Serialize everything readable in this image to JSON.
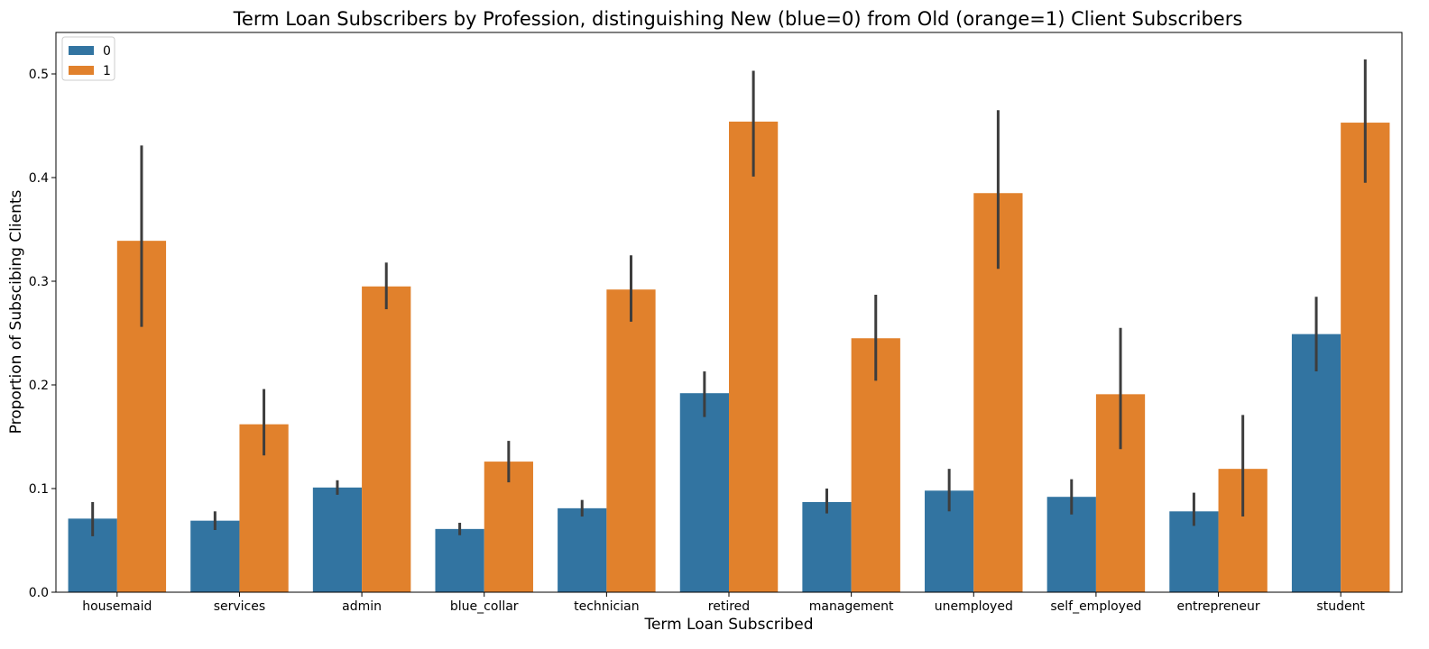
{
  "chart_data": {
    "type": "bar",
    "title": "Term Loan Subscribers by Profession, distinguishing New (blue=0) from Old (orange=1) Client Subscribers",
    "xlabel": "Term Loan Subscribed",
    "ylabel": "Proportion of Subscibing Clients",
    "ylim": [
      0,
      0.54
    ],
    "yticks": [
      "0.0",
      "0.1",
      "0.2",
      "0.3",
      "0.4",
      "0.5"
    ],
    "ytick_values": [
      0.0,
      0.1,
      0.2,
      0.3,
      0.4,
      0.5
    ],
    "grid": false,
    "legend_position": "top-left",
    "categories": [
      "housemaid",
      "services",
      "admin",
      "blue_collar",
      "technician",
      "retired",
      "management",
      "unemployed",
      "self_employed",
      "entrepreneur",
      "student"
    ],
    "series": [
      {
        "name": "0",
        "color": "#3274a1",
        "values": [
          0.071,
          0.069,
          0.101,
          0.061,
          0.081,
          0.192,
          0.087,
          0.098,
          0.092,
          0.078,
          0.249
        ],
        "error_low": [
          0.054,
          0.06,
          0.094,
          0.055,
          0.073,
          0.169,
          0.076,
          0.078,
          0.075,
          0.064,
          0.213
        ],
        "error_high": [
          0.087,
          0.078,
          0.108,
          0.067,
          0.089,
          0.213,
          0.1,
          0.119,
          0.109,
          0.096,
          0.285
        ]
      },
      {
        "name": "1",
        "color": "#e1812c",
        "values": [
          0.339,
          0.162,
          0.295,
          0.126,
          0.292,
          0.454,
          0.245,
          0.385,
          0.191,
          0.119,
          0.453
        ],
        "error_low": [
          0.256,
          0.132,
          0.273,
          0.106,
          0.261,
          0.401,
          0.204,
          0.312,
          0.138,
          0.073,
          0.395
        ],
        "error_high": [
          0.431,
          0.196,
          0.318,
          0.146,
          0.325,
          0.503,
          0.287,
          0.465,
          0.255,
          0.171,
          0.514
        ]
      }
    ]
  }
}
